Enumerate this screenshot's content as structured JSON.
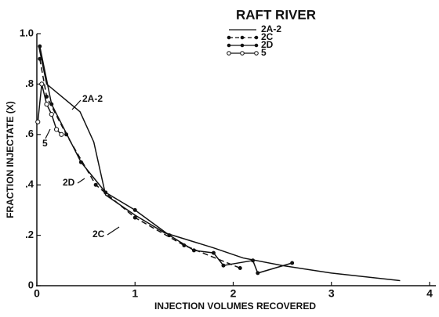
{
  "chart_data": {
    "type": "line",
    "title": "RAFT RIVER",
    "x_label": "INJECTION VOLUMES RECOVERED",
    "y_label": "FRACTION INJECTATE (X)",
    "annotations": [
      "2A-2",
      "5",
      "2D",
      "2C"
    ],
    "xlim": [
      0,
      4
    ],
    "xticks": [
      0,
      1,
      2,
      3,
      4
    ],
    "ylim": [
      0,
      1
    ],
    "yticks": [
      0,
      {
        "value": 0.2,
        "label": ".2"
      },
      {
        "value": 0.4,
        "label": ".4"
      },
      {
        "value": 0.6,
        "label": ".6"
      },
      {
        "value": 0.8,
        "label": ".8"
      },
      {
        "value": 1,
        "label": "1.0"
      }
    ],
    "grid": false,
    "series": [
      {
        "name": "2A-2",
        "color": "#111111",
        "dash": false,
        "marker": "none",
        "x": [
          0.02,
          0.1,
          0.44,
          0.58,
          0.7,
          1.0,
          1.3,
          1.8,
          2.1,
          2.5,
          3.0,
          3.7
        ],
        "values": [
          0.95,
          0.8,
          0.69,
          0.57,
          0.36,
          0.28,
          0.21,
          0.15,
          0.11,
          0.08,
          0.05,
          0.02
        ]
      },
      {
        "name": "2C",
        "color": "#111111",
        "dash": true,
        "marker": "dot",
        "x": [
          0.03,
          0.1,
          0.3,
          0.6,
          1.0,
          1.5,
          2.07
        ],
        "values": [
          0.9,
          0.75,
          0.6,
          0.4,
          0.27,
          0.16,
          0.07
        ]
      },
      {
        "name": "2D",
        "color": "#111111",
        "dash": false,
        "marker": "dot",
        "x": [
          0.03,
          0.15,
          0.45,
          0.7,
          1.0,
          1.35,
          1.6,
          1.8,
          1.9,
          2.2,
          2.25,
          2.6
        ],
        "values": [
          0.95,
          0.72,
          0.49,
          0.37,
          0.3,
          0.2,
          0.14,
          0.13,
          0.08,
          0.1,
          0.05,
          0.09
        ]
      },
      {
        "name": "5",
        "color": "#111111",
        "dash": false,
        "marker": "circle",
        "x": [
          0.01,
          0.05,
          0.1,
          0.15,
          0.2,
          0.25
        ],
        "values": [
          0.65,
          0.8,
          0.72,
          0.68,
          0.62,
          0.6
        ]
      }
    ]
  }
}
